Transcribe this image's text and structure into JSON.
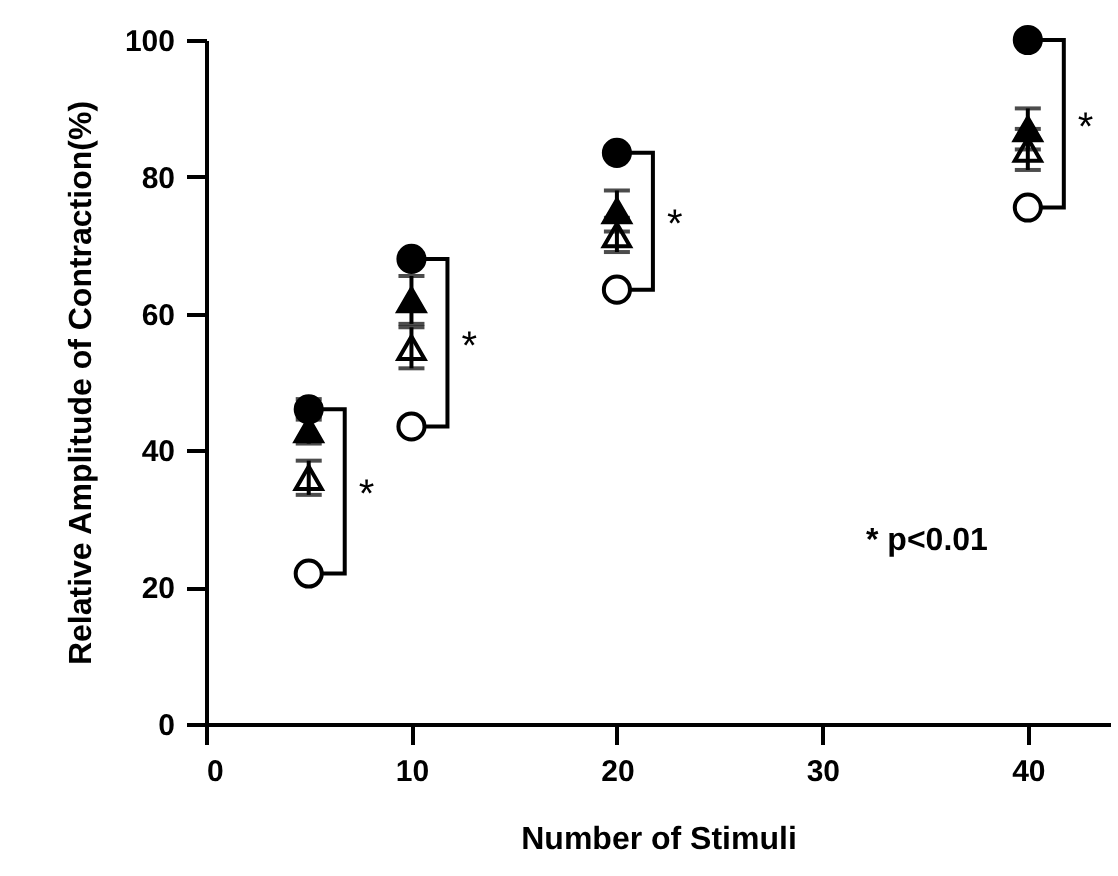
{
  "chart_data": {
    "type": "scatter",
    "xlabel": "Number of Stimuli",
    "ylabel": "Relative Amplitude of Contraction(%)",
    "x": [
      5,
      10,
      20,
      40
    ],
    "series": [
      {
        "color": "#000000",
        "marker": "circle",
        "values": [
          46,
          68,
          83.5,
          100
        ],
        "errors": [
          1.5,
          null,
          null,
          null
        ]
      },
      {
        "color": "#000000",
        "marker": "triangle",
        "values": [
          43,
          62,
          75,
          87
        ],
        "errors": [
          2,
          3.5,
          3,
          3
        ]
      },
      {
        "color": "#ffffff",
        "marker": "triangle",
        "values": [
          36,
          55,
          71.5,
          84
        ],
        "errors": [
          2.5,
          3,
          2.5,
          3
        ]
      },
      {
        "color": "#ffffff",
        "marker": "circle",
        "values": [
          22,
          43.5,
          63.5,
          75.5
        ]
      }
    ],
    "annotations": [
      "*",
      "*",
      "*",
      "*",
      "* p<0.01"
    ],
    "xlim": [
      0,
      44
    ],
    "xticks": [
      0,
      10,
      20,
      30,
      40
    ],
    "ylim": [
      0,
      100
    ],
    "yticks": [
      0,
      20,
      40,
      60,
      80,
      100
    ],
    "grid": false
  }
}
